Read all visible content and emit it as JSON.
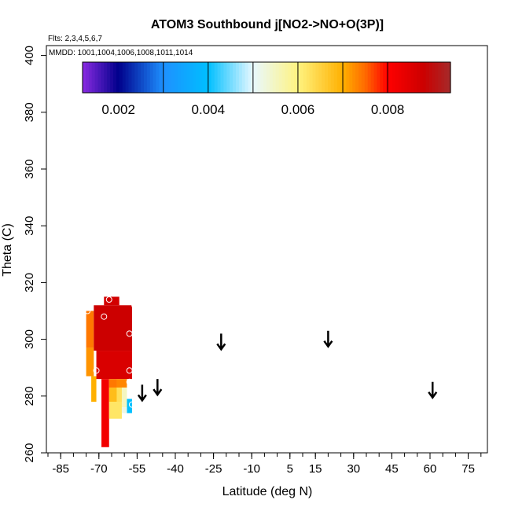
{
  "chart_data": {
    "type": "heatmap",
    "title": "ATOM3 Southbound j[NO2->NO+O(3P)]",
    "flights_label": "Flts: 2,3,4,5,6,7",
    "dates_label": "MMDD: 1001,1004,1006,1008,1011,1014",
    "xlabel": "Latitude (deg N)",
    "ylabel": "Theta (C)",
    "xlim": [
      -90,
      90
    ],
    "ylim": [
      260,
      405
    ],
    "x_ticks": [
      -85,
      -70,
      -55,
      -40,
      -25,
      -10,
      5,
      15,
      30,
      45,
      60,
      75
    ],
    "x_tick_labels": [
      "-85",
      "-70",
      "-55",
      "-40",
      "-25",
      "-10",
      "5",
      "15",
      "30",
      "45",
      "60",
      "75"
    ],
    "x_minor_step": 5,
    "y_ticks": [
      260,
      280,
      300,
      320,
      340,
      360,
      380,
      400
    ],
    "y_tick_labels": [
      "260",
      "280",
      "300",
      "320",
      "340",
      "360",
      "380",
      "400"
    ],
    "colorbar": {
      "range": [
        0.0012,
        0.0094
      ],
      "bin_edges": [
        0.0012,
        0.003,
        0.004,
        0.005,
        0.006,
        0.007,
        0.008,
        0.0094
      ],
      "stops": [
        {
          "v": 0.0012,
          "c": "#8a2be2"
        },
        {
          "v": 0.002,
          "c": "#00008b"
        },
        {
          "v": 0.003,
          "c": "#1e90ff"
        },
        {
          "v": 0.004,
          "c": "#00bfff"
        },
        {
          "v": 0.005,
          "c": "#e8f8ff"
        },
        {
          "v": 0.006,
          "c": "#fff380"
        },
        {
          "v": 0.007,
          "c": "#ffb000"
        },
        {
          "v": 0.0075,
          "c": "#ff6a00"
        },
        {
          "v": 0.008,
          "c": "#ff0000"
        },
        {
          "v": 0.0088,
          "c": "#cc0000"
        },
        {
          "v": 0.0094,
          "c": "#a52a2a"
        }
      ],
      "tick_values": [
        0.002,
        0.004,
        0.006,
        0.008
      ],
      "tick_labels": [
        "0.002",
        "0.004",
        "0.006",
        "0.008"
      ]
    },
    "field_cells": [
      {
        "lat0": -75,
        "lat1": -72,
        "th0": 297,
        "th1": 310,
        "v": 0.0074
      },
      {
        "lat0": -75,
        "lat1": -72,
        "th0": 287,
        "th1": 297,
        "v": 0.0072
      },
      {
        "lat0": -73,
        "lat1": -71,
        "th0": 278,
        "th1": 287,
        "v": 0.007
      },
      {
        "lat0": -72,
        "lat1": -57,
        "th0": 296,
        "th1": 312,
        "v": 0.0088
      },
      {
        "lat0": -68,
        "lat1": -62,
        "th0": 312,
        "th1": 315,
        "v": 0.0087
      },
      {
        "lat0": -71,
        "lat1": -57,
        "th0": 286,
        "th1": 296,
        "v": 0.0086
      },
      {
        "lat0": -69,
        "lat1": -66,
        "th0": 262,
        "th1": 286,
        "v": 0.0082
      },
      {
        "lat0": -66,
        "lat1": -63,
        "th0": 283,
        "th1": 286,
        "v": 0.0074
      },
      {
        "lat0": -66,
        "lat1": -63,
        "th0": 278,
        "th1": 283,
        "v": 0.0068
      },
      {
        "lat0": -63,
        "lat1": -59,
        "th0": 283,
        "th1": 286,
        "v": 0.0073
      },
      {
        "lat0": -63,
        "lat1": -60,
        "th0": 278,
        "th1": 283,
        "v": 0.0063
      },
      {
        "lat0": -66,
        "lat1": -61,
        "th0": 272,
        "th1": 278,
        "v": 0.0062
      },
      {
        "lat0": -61,
        "lat1": -59,
        "th0": 276,
        "th1": 283,
        "v": 0.0055
      },
      {
        "lat0": -59,
        "lat1": -57,
        "th0": 274,
        "th1": 279,
        "v": 0.004
      },
      {
        "lat0": -61,
        "lat1": -59,
        "th0": 274,
        "th1": 276,
        "v": 0.0052
      }
    ],
    "markers": [
      {
        "lat": -74.5,
        "theta": 310
      },
      {
        "lat": -68,
        "theta": 308
      },
      {
        "lat": -66,
        "theta": 314
      },
      {
        "lat": -56,
        "theta": 312
      },
      {
        "lat": -58,
        "theta": 302
      },
      {
        "lat": -71,
        "theta": 289
      },
      {
        "lat": -58,
        "theta": 289
      },
      {
        "lat": -58,
        "theta": 285
      },
      {
        "lat": -57,
        "theta": 277
      }
    ],
    "arrows": [
      {
        "lat": -53,
        "theta": 284
      },
      {
        "lat": -47,
        "theta": 286
      },
      {
        "lat": -22,
        "theta": 302
      },
      {
        "lat": 20,
        "theta": 303
      },
      {
        "lat": 61,
        "theta": 285
      }
    ]
  }
}
